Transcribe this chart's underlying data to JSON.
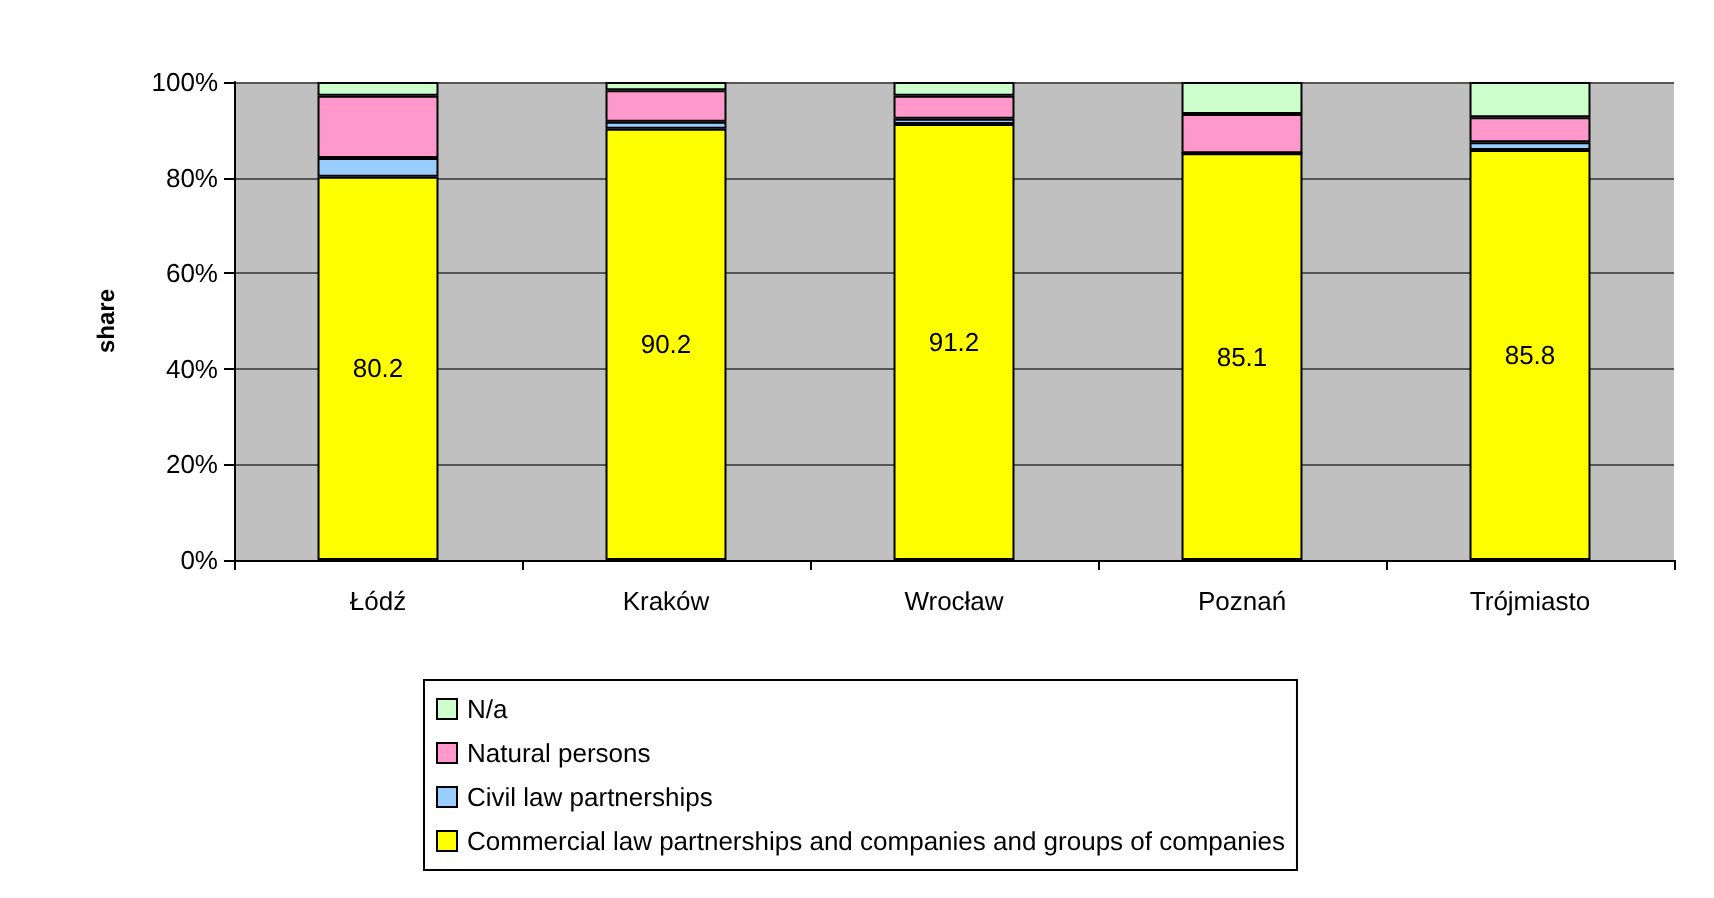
{
  "chart_data": {
    "type": "bar",
    "stacked": true,
    "ylabel": "share",
    "categories": [
      "Łódź",
      "Kraków",
      "Wrocław",
      "Poznań",
      "Trójmiasto"
    ],
    "series": [
      {
        "name": "Commercial law partnerships and companies and groups of companies",
        "color": "#ffff00",
        "values": [
          80.2,
          90.2,
          91.2,
          85.1,
          85.8
        ],
        "value_labels": [
          "80.2",
          "90.2",
          "91.2",
          "85.1",
          "85.8"
        ]
      },
      {
        "name": "Civil law partnerships",
        "color": "#99ccff",
        "values": [
          3.9,
          1.5,
          1.1,
          0,
          1.6
        ]
      },
      {
        "name": "Natural persons",
        "color": "#ff99cc",
        "values": [
          13.0,
          6.6,
          4.8,
          8.2,
          5.2
        ]
      },
      {
        "name": "N/a",
        "color": "#ccffcc",
        "values": [
          2.9,
          1.7,
          2.9,
          6.7,
          7.4
        ]
      }
    ],
    "ylim": [
      0,
      100
    ],
    "yticks": [
      {
        "value": 0,
        "label": "0%"
      },
      {
        "value": 20,
        "label": "20%"
      },
      {
        "value": 40,
        "label": "40%"
      },
      {
        "value": 60,
        "label": "60%"
      },
      {
        "value": 80,
        "label": "80%"
      },
      {
        "value": 100,
        "label": "100%"
      }
    ],
    "grid": "y",
    "legend": "bottom"
  }
}
